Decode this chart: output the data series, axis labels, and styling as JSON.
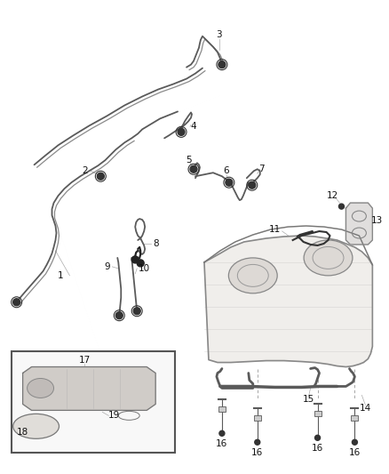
{
  "background": "#ffffff",
  "figure_width": 4.38,
  "figure_height": 5.33,
  "dpi": 100,
  "line_color": "#5a5a5a",
  "label_color": "#000000",
  "label_fontsize": 7.5,
  "tank_color": "#888888",
  "tube_color": "#666666"
}
